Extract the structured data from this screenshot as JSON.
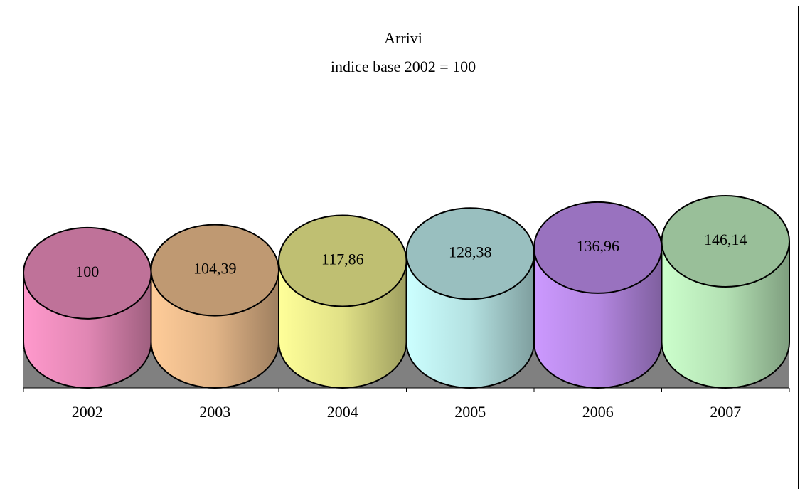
{
  "chart_data": {
    "type": "cylinder",
    "title": "Arrivi",
    "subtitle": "indice base 2002 = 100",
    "categories": [
      "2002",
      "2003",
      "2004",
      "2005",
      "2006",
      "2007"
    ],
    "values": [
      100,
      104.39,
      117.86,
      128.38,
      136.96,
      146.14
    ],
    "value_labels": [
      "100",
      "104,39",
      "117,86",
      "128,38",
      "136,96",
      "146,14"
    ],
    "colors": [
      "#ff99cc",
      "#ffcc99",
      "#ffff99",
      "#ccffff",
      "#cc99ff",
      "#ccffcc"
    ]
  }
}
